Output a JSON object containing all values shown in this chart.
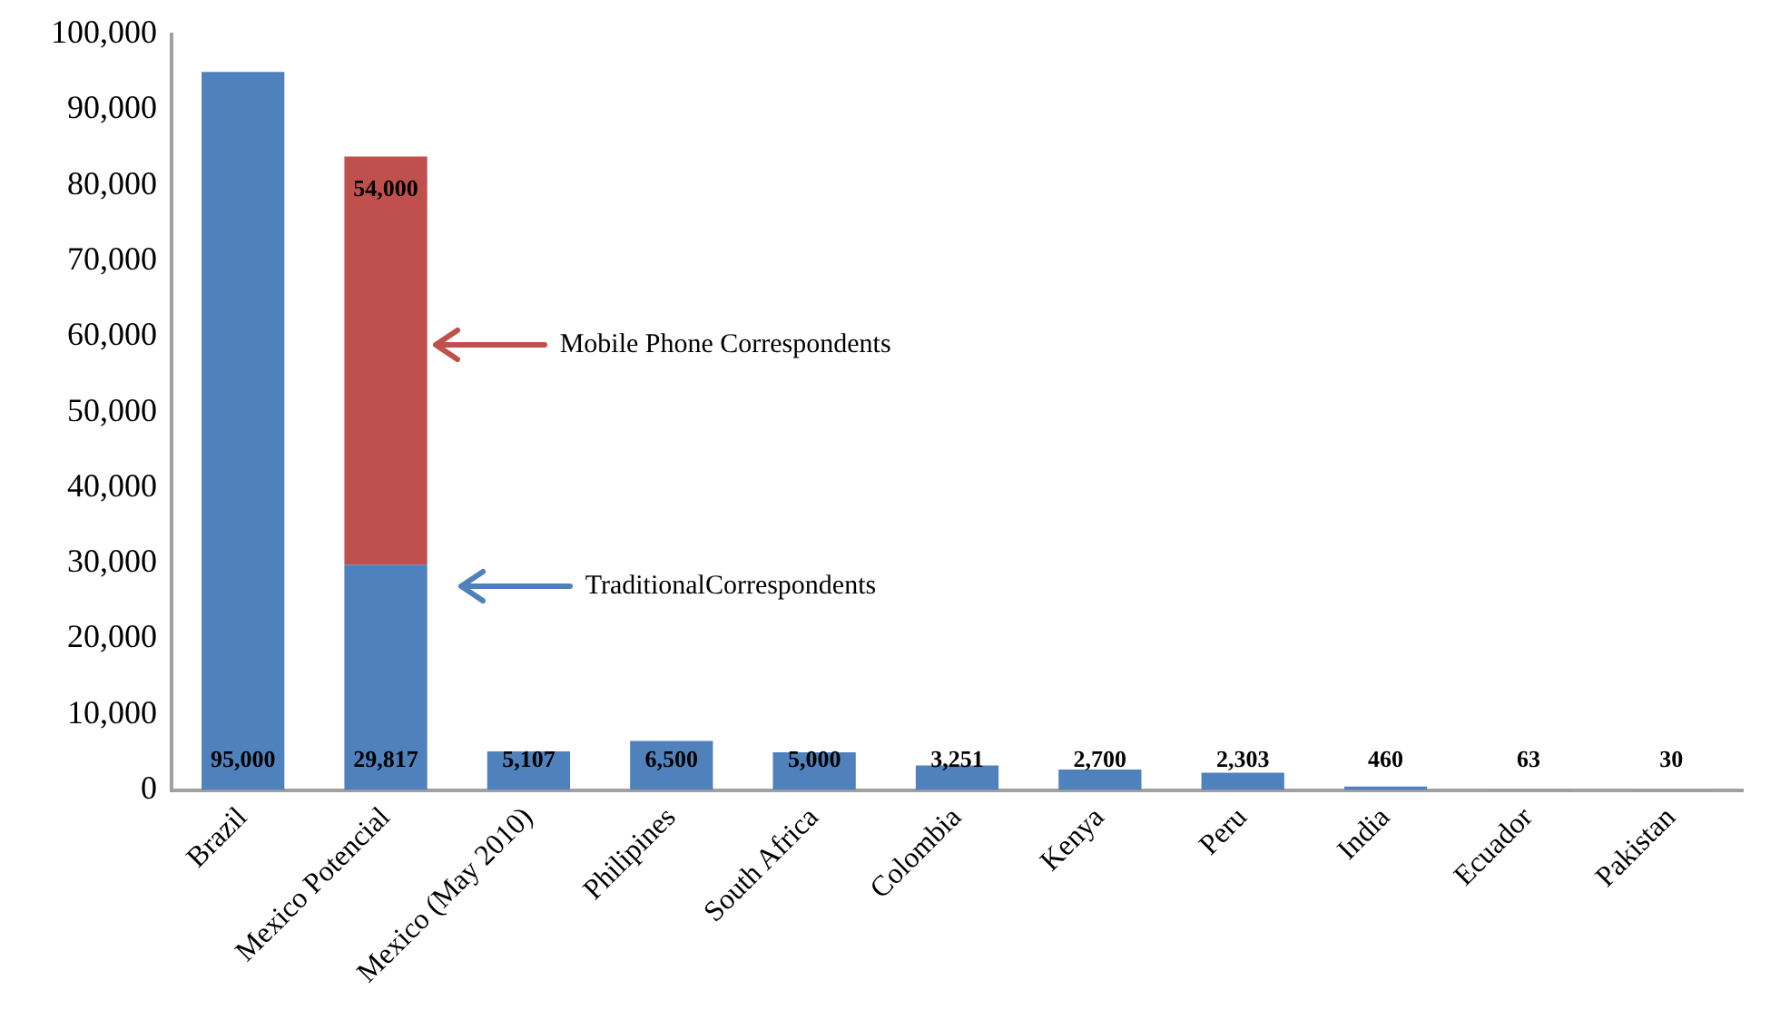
{
  "chart_data": {
    "type": "bar",
    "stacked": true,
    "categories": [
      "Brazil",
      "Mexico Potencial",
      "Mexico (May 2010)",
      "Philipines",
      "South Africa",
      "Colombia",
      "Kenya",
      "Peru",
      "India",
      "Ecuador",
      "Pakistan"
    ],
    "series": [
      {
        "color": "#4f81bd",
        "values": [
          95000,
          29817,
          5107,
          6500,
          5000,
          3251,
          2700,
          2303,
          460,
          63,
          30
        ],
        "value_labels": [
          "95,000",
          "29,817",
          "5,107",
          "6,500",
          "5,000",
          "3,251",
          "2,700",
          "2,303",
          "460",
          "63",
          "30"
        ]
      },
      {
        "color": "#c0504d",
        "values": [
          null,
          54000,
          null,
          null,
          null,
          null,
          null,
          null,
          null,
          null,
          null
        ],
        "value_labels": [
          null,
          "54,000",
          null,
          null,
          null,
          null,
          null,
          null,
          null,
          null,
          null
        ]
      }
    ],
    "ylim": [
      0,
      100000
    ],
    "yticks": [
      {
        "value": 0,
        "label": "0"
      },
      {
        "value": 10000,
        "label": "10,000"
      },
      {
        "value": 20000,
        "label": "20,000"
      },
      {
        "value": 30000,
        "label": "30,000"
      },
      {
        "value": 40000,
        "label": "40,000"
      },
      {
        "value": 50000,
        "label": "50,000"
      },
      {
        "value": 60000,
        "label": "60,000"
      },
      {
        "value": 70000,
        "label": "70,000"
      },
      {
        "value": 80000,
        "label": "80,000"
      },
      {
        "value": 90000,
        "label": "90,000"
      },
      {
        "value": 100000,
        "label": "100,000"
      }
    ],
    "grid": false,
    "legend": false,
    "annotations": [
      "Mobile Phone Correspondents",
      "TraditionalCorrespondents"
    ]
  }
}
